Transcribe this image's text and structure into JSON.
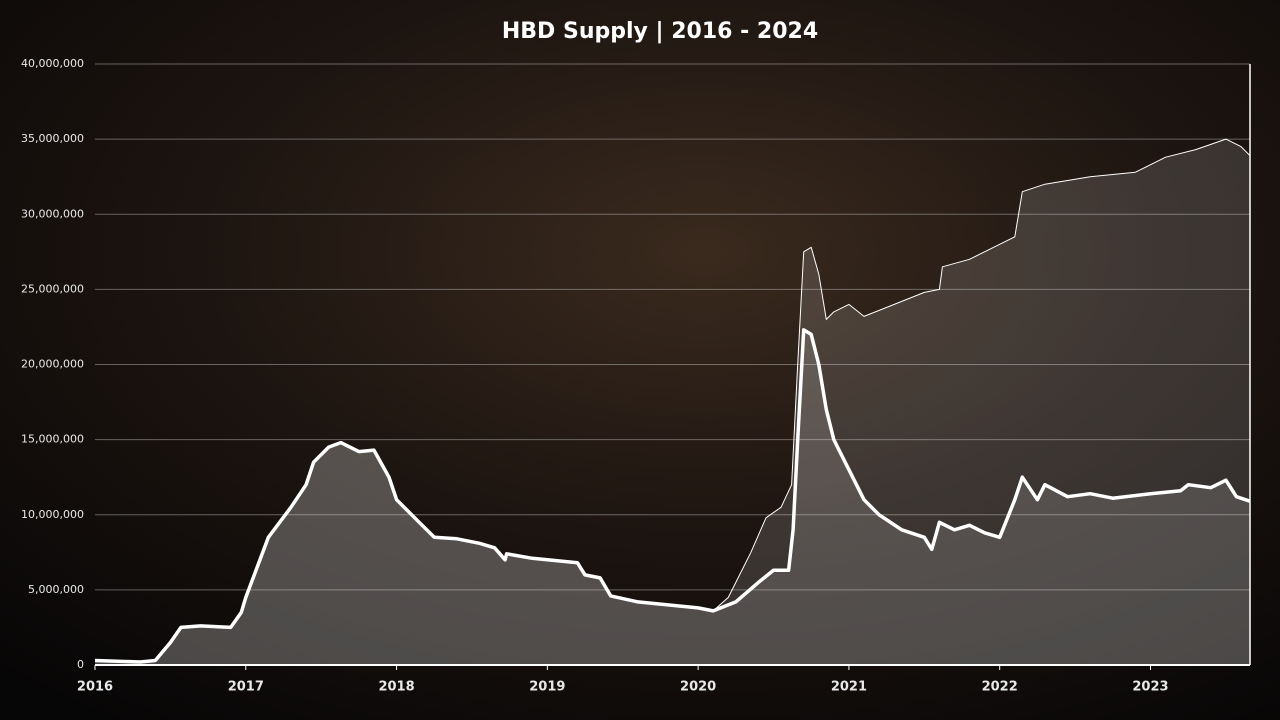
{
  "chart_data": {
    "type": "area",
    "title": "HBD Supply | 2016 - 2024",
    "xlim": [
      2016,
      2023.66
    ],
    "xticks": [
      2016,
      2017,
      2018,
      2019,
      2020,
      2021,
      2022,
      2023
    ],
    "ylim": [
      0,
      40000000
    ],
    "yticks": [
      0,
      {
        "value": 5000000,
        "label": "5,000,000"
      },
      {
        "value": 10000000,
        "label": "10,000,000"
      },
      {
        "value": 15000000,
        "label": "15,000,000"
      },
      {
        "value": 20000000,
        "label": "20,000,000"
      },
      {
        "value": 25000000,
        "label": "25,000,000"
      },
      {
        "value": 30000000,
        "label": "30,000,000"
      },
      {
        "value": 35000000,
        "label": "35,000,000"
      },
      {
        "value": 40000000,
        "label": "40,000,000"
      }
    ],
    "grid": true,
    "series": [
      {
        "color": "#ffffff",
        "x": [
          2016.0,
          2016.3,
          2016.4,
          2016.5,
          2016.57,
          2016.7,
          2016.9,
          2016.97,
          2017.0,
          2017.15,
          2017.3,
          2017.4,
          2017.45,
          2017.55,
          2017.63,
          2017.75,
          2017.85,
          2017.95,
          2018.0,
          2018.15,
          2018.25,
          2018.4,
          2018.55,
          2018.65,
          2018.72,
          2018.73,
          2018.9,
          2019.1,
          2019.2,
          2019.25,
          2019.35,
          2019.42,
          2019.6,
          2019.8,
          2020.0,
          2020.1,
          2020.2,
          2020.35,
          2020.45,
          2020.55,
          2020.62,
          2020.66,
          2020.7,
          2020.75,
          2020.8,
          2020.85,
          2020.9,
          2021.0,
          2021.1,
          2021.3,
          2021.5,
          2021.6,
          2021.62,
          2021.8,
          2022.0,
          2022.1,
          2022.15,
          2022.3,
          2022.6,
          2022.9,
          2023.1,
          2023.3,
          2023.5,
          2023.6,
          2023.66
        ],
        "values": [
          300000,
          200000,
          300000,
          1500000,
          2500000,
          2600000,
          2500000,
          3500000,
          4500000,
          8500000,
          10500000,
          12000000,
          13500000,
          14500000,
          14800000,
          14200000,
          14300000,
          12500000,
          11000000,
          9500000,
          8500000,
          8400000,
          8100000,
          7800000,
          7000000,
          7400000,
          7100000,
          6900000,
          6800000,
          6000000,
          5800000,
          4600000,
          4200000,
          4000000,
          3800000,
          3600000,
          4500000,
          7500000,
          9800000,
          10500000,
          12000000,
          20000000,
          27500000,
          27800000,
          26000000,
          23000000,
          23500000,
          24000000,
          23200000,
          24000000,
          24800000,
          25000000,
          26500000,
          27000000,
          28000000,
          28500000,
          31500000,
          32000000,
          32500000,
          32800000,
          33800000,
          34300000,
          35000000,
          34500000,
          33900000
        ],
        "width": 1
      },
      {
        "color": "#ffffff",
        "x": [
          2016.0,
          2016.3,
          2016.4,
          2016.5,
          2016.57,
          2016.7,
          2016.9,
          2016.97,
          2017.0,
          2017.15,
          2017.3,
          2017.4,
          2017.45,
          2017.55,
          2017.63,
          2017.75,
          2017.85,
          2017.95,
          2018.0,
          2018.15,
          2018.25,
          2018.4,
          2018.55,
          2018.65,
          2018.72,
          2018.73,
          2018.9,
          2019.1,
          2019.2,
          2019.25,
          2019.35,
          2019.42,
          2019.6,
          2019.8,
          2020.0,
          2020.1,
          2020.25,
          2020.4,
          2020.5,
          2020.6,
          2020.63,
          2020.66,
          2020.7,
          2020.75,
          2020.8,
          2020.85,
          2020.9,
          2021.0,
          2021.1,
          2021.2,
          2021.35,
          2021.5,
          2021.55,
          2021.6,
          2021.7,
          2021.8,
          2021.9,
          2022.0,
          2022.1,
          2022.15,
          2022.25,
          2022.3,
          2022.45,
          2022.6,
          2022.75,
          2023.0,
          2023.2,
          2023.25,
          2023.4,
          2023.5,
          2023.57,
          2023.66
        ],
        "values": [
          300000,
          200000,
          300000,
          1500000,
          2500000,
          2600000,
          2500000,
          3500000,
          4500000,
          8500000,
          10500000,
          12000000,
          13500000,
          14500000,
          14800000,
          14200000,
          14300000,
          12500000,
          11000000,
          9500000,
          8500000,
          8400000,
          8100000,
          7800000,
          7000000,
          7400000,
          7100000,
          6900000,
          6800000,
          6000000,
          5800000,
          4600000,
          4200000,
          4000000,
          3800000,
          3600000,
          4200000,
          5500000,
          6300000,
          6300000,
          9000000,
          15000000,
          22300000,
          22000000,
          20000000,
          17000000,
          15000000,
          13000000,
          11000000,
          10000000,
          9000000,
          8500000,
          7700000,
          9500000,
          9000000,
          9300000,
          8800000,
          8500000,
          11000000,
          12500000,
          11000000,
          12000000,
          11200000,
          11400000,
          11100000,
          11400000,
          11600000,
          12000000,
          11800000,
          12300000,
          11200000,
          10900000
        ],
        "width": 3.5
      }
    ]
  }
}
